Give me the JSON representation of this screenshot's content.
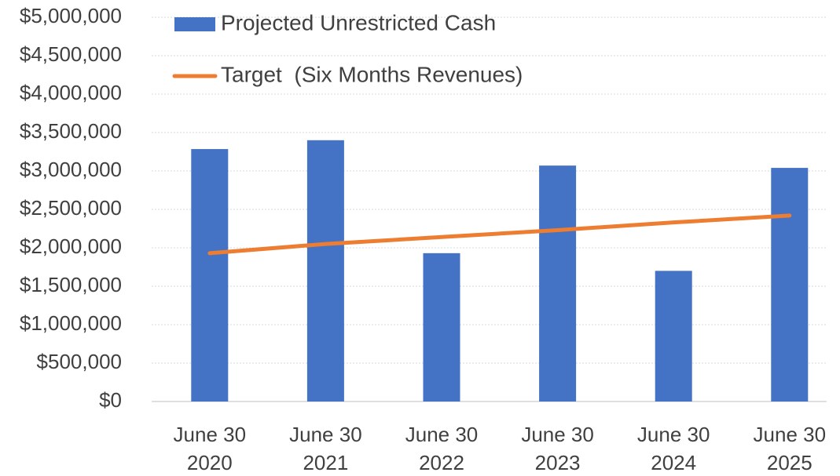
{
  "chart_data": {
    "type": "bar_line",
    "categories": [
      "June 30 2020",
      "June 30 2021",
      "June 30 2022",
      "June 30 2023",
      "June 30 2024",
      "June 30 2025"
    ],
    "series": [
      {
        "name": "Projected Unrestricted Cash",
        "type": "bar",
        "color": "#4472c4",
        "values": [
          3285000,
          3400000,
          1930000,
          3070000,
          1700000,
          3040000
        ]
      },
      {
        "name": "Target  (Six Months Revenues)",
        "type": "line",
        "color": "#ed7d31",
        "values": [
          1930000,
          2050000,
          2140000,
          2230000,
          2330000,
          2420000
        ]
      }
    ],
    "ylim": [
      0,
      5000000
    ],
    "yticks": [
      {
        "value": 0,
        "label": "$0"
      },
      {
        "value": 500000,
        "label": "$500,000"
      },
      {
        "value": 1000000,
        "label": "$1,000,000"
      },
      {
        "value": 1500000,
        "label": "$1,500,000"
      },
      {
        "value": 2000000,
        "label": "$2,000,000"
      },
      {
        "value": 2500000,
        "label": "$2,500,000"
      },
      {
        "value": 3000000,
        "label": "$3,000,000"
      },
      {
        "value": 3500000,
        "label": "$3,500,000"
      },
      {
        "value": 4000000,
        "label": "$4,000,000"
      },
      {
        "value": 4500000,
        "label": "$4,500,000"
      },
      {
        "value": 5000000,
        "label": "$5,000,000"
      }
    ],
    "grid": true,
    "legend": "top-left"
  }
}
